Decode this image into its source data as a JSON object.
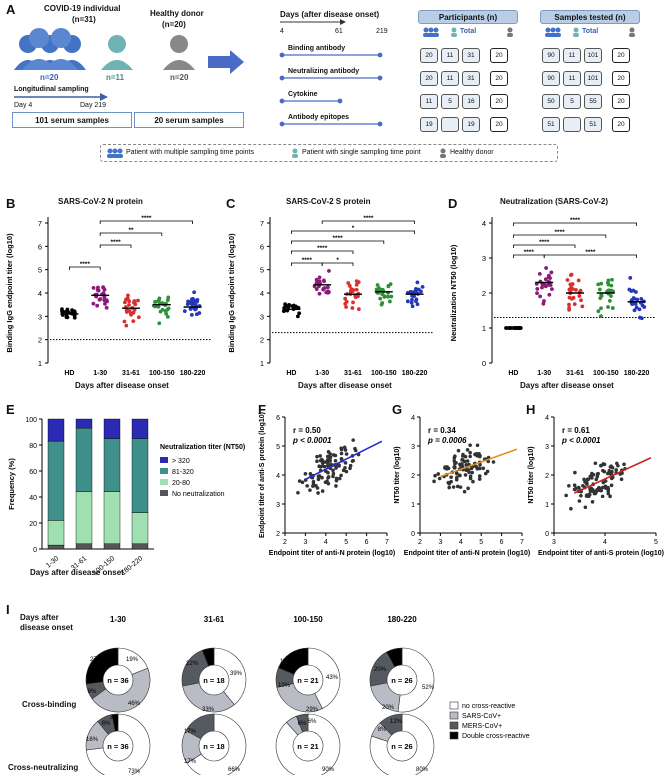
{
  "panelA": {
    "label": "A",
    "covid_title": "COVID-19 individual",
    "covid_n": "(n=31)",
    "healthy_title": "Healthy donor",
    "healthy_n": "(n=20)",
    "n_multi": "n=20",
    "n_single": "n=11",
    "n_hd": "n=20",
    "long_sampling": "Longitudinal sampling",
    "day4": "Day 4",
    "day219": "Day 219",
    "serum_covid": "101 serum samples",
    "serum_hd": "20 serum samples",
    "days_title": "Days (after disease onset)",
    "day_ticks": [
      "4",
      "61",
      "219"
    ],
    "assays": [
      "Binding antibody",
      "Neutralizing antibody",
      "Cytokine",
      "Antibody epitopes"
    ],
    "participants_title": "Participants (n)",
    "samples_title": "Samples tested (n)",
    "total_label": "Total",
    "participants": [
      [
        "20",
        "11",
        "31",
        "20"
      ],
      [
        "20",
        "11",
        "31",
        "20"
      ],
      [
        "11",
        "5",
        "16",
        "20"
      ],
      [
        "19",
        "",
        "19",
        "20"
      ]
    ],
    "samples": [
      [
        "90",
        "11",
        "101",
        "20"
      ],
      [
        "90",
        "11",
        "101",
        "20"
      ],
      [
        "50",
        "5",
        "55",
        "20"
      ],
      [
        "51",
        "",
        "51",
        "20"
      ]
    ],
    "legend": [
      "Patient with multiple sampling time points",
      "Patient with single sampling time point",
      "Healthy donor"
    ]
  },
  "panelB": {
    "label": "B",
    "title": "SARS-CoV-2 N protein",
    "ylabel": "Binding IgG endpoint titer (log10)",
    "xlabel": "Days after disease onset",
    "yticks": [
      "1",
      "2",
      "3",
      "4",
      "5",
      "6",
      "7"
    ],
    "groups": [
      "HD",
      "1-30",
      "31-61",
      "100-150",
      "180-220"
    ],
    "sig": [
      "****",
      "****",
      "**",
      "****",
      "****"
    ]
  },
  "panelC": {
    "label": "C",
    "title": "SARS-CoV-2 S protein",
    "ylabel": "Binding IgG endpoint titer (log10)",
    "xlabel": "Days after disease onset",
    "yticks": [
      "1",
      "2",
      "3",
      "4",
      "5",
      "6",
      "7"
    ],
    "groups": [
      "HD",
      "1-30",
      "31-61",
      "100-150",
      "180-220"
    ],
    "sig": [
      "****",
      "*",
      "****",
      "****",
      "****",
      "*"
    ]
  },
  "panelD": {
    "label": "D",
    "title": "Neutralization (SARS-CoV-2)",
    "ylabel": "Neutralization NT50 (log10)",
    "xlabel": "Days after disease onset",
    "yticks": [
      "0",
      "1",
      "2",
      "3",
      "4"
    ],
    "groups": [
      "HD",
      "1-30",
      "31-61",
      "100-150",
      "180-220"
    ],
    "sig": [
      "****",
      "****",
      "****",
      "****",
      "****"
    ]
  },
  "panelE": {
    "label": "E",
    "ylabel": "Frequency (%)",
    "xlabel": "Days after disease onset",
    "yticks": [
      "0",
      "20",
      "40",
      "60",
      "80",
      "100"
    ],
    "legend_title": "Neutralization titer (NT50)",
    "legend": [
      "> 320",
      "81-320",
      "20-80",
      "No neutralization"
    ]
  },
  "panelF": {
    "label": "F",
    "r": "r = 0.50",
    "p": "p < 0.0001",
    "ylabel": "Endpoint titer of anti-S protein (log10)",
    "xlabel": "Endpoint titer of anti-N protein (log10)",
    "xticks": [
      "2",
      "3",
      "4",
      "5",
      "6",
      "7"
    ],
    "yticks": [
      "2",
      "3",
      "4",
      "5",
      "6"
    ]
  },
  "panelG": {
    "label": "G",
    "r": "r = 0.34",
    "p": "p = 0.0006",
    "ylabel": "NT50 titer (log10)",
    "xlabel": "Endpoint titer of anti-N protein (log10)",
    "xticks": [
      "2",
      "3",
      "4",
      "5",
      "6",
      "7"
    ],
    "yticks": [
      "0",
      "1",
      "2",
      "3",
      "4"
    ]
  },
  "panelH": {
    "label": "H",
    "r": "r = 0.61",
    "p": "p < 0.0001",
    "ylabel": "NT50 titer (log10)",
    "xlabel": "Endpoint titer of anti-S protein (log10)",
    "xticks": [
      "3",
      "4",
      "5"
    ],
    "yticks": [
      "0",
      "1",
      "2",
      "3",
      "4"
    ]
  },
  "panelI": {
    "label": "I",
    "days_label_1": "Days after",
    "days_label_2": "disease onset",
    "columns": [
      "1-30",
      "31-61",
      "100-150",
      "180-220"
    ],
    "rows": [
      "Cross-binding",
      "Cross-neutralizing"
    ],
    "centers": [
      [
        "n = 36",
        "n = 18",
        "n = 21",
        "n = 26"
      ],
      [
        "n = 36",
        "n = 18",
        "n = 21",
        "n = 26"
      ]
    ],
    "labels_binding": [
      [
        "27%",
        "19%",
        "46%",
        "8%"
      ],
      [
        "22%",
        "6%",
        "39%",
        "33%"
      ],
      [
        "19%",
        "10%",
        "43%",
        "29%"
      ],
      [
        "20%",
        "8%",
        "52%",
        "20%"
      ]
    ],
    "labels_neutral": [
      [
        "3%",
        "8%",
        "16%",
        "73%"
      ],
      [
        "17%",
        "17%",
        "66%"
      ],
      [
        "6%",
        "6%",
        "90%"
      ],
      [
        "8%",
        "12%",
        "80%"
      ]
    ],
    "legend": [
      "no cross-reactive",
      "SARS-CoV+",
      "MERS-CoV+",
      "Double cross-reactive"
    ]
  },
  "chart_data": [
    {
      "type": "bar",
      "title": "Neutralization titer distribution",
      "categories": [
        "1-30",
        "31-61",
        "100-150",
        "180-220"
      ],
      "series": [
        {
          "name": "No neutralization",
          "values": [
            3,
            4,
            4,
            4
          ]
        },
        {
          "name": "20-80",
          "values": [
            19,
            40,
            40,
            24
          ]
        },
        {
          "name": "81-320",
          "values": [
            61,
            49,
            41,
            57
          ]
        },
        {
          "name": "> 320",
          "values": [
            17,
            7,
            15,
            15
          ]
        }
      ],
      "xlabel": "Days after disease onset",
      "ylabel": "Frequency (%)",
      "ylim": [
        0,
        100
      ]
    },
    {
      "type": "pie",
      "title": "Cross-binding",
      "categories": [
        "1-30",
        "31-61",
        "100-150",
        "180-220"
      ],
      "series": [
        {
          "name": "no cross-reactive",
          "values": [
            19,
            39,
            43,
            52
          ]
        },
        {
          "name": "SARS-CoV+",
          "values": [
            46,
            33,
            29,
            20
          ]
        },
        {
          "name": "MERS-CoV+",
          "values": [
            8,
            22,
            10,
            20
          ]
        },
        {
          "name": "Double cross-reactive",
          "values": [
            27,
            6,
            19,
            8
          ]
        }
      ]
    },
    {
      "type": "pie",
      "title": "Cross-neutralizing",
      "categories": [
        "1-30",
        "31-61",
        "100-150",
        "180-220"
      ],
      "series": [
        {
          "name": "no cross-reactive",
          "values": [
            73,
            66,
            90,
            80
          ]
        },
        {
          "name": "SARS-CoV+",
          "values": [
            16,
            17,
            6,
            8
          ]
        },
        {
          "name": "MERS-CoV+",
          "values": [
            8,
            17,
            6,
            12
          ]
        },
        {
          "name": "Double cross-reactive",
          "values": [
            3,
            0,
            0,
            0
          ]
        }
      ]
    },
    {
      "type": "scatter",
      "title": "Binding IgG N protein",
      "categories": [
        "HD",
        "1-30",
        "31-61",
        "100-150",
        "180-220"
      ],
      "series": [
        {
          "name": "median",
          "values": [
            3.1,
            3.9,
            3.35,
            3.5,
            3.4
          ]
        }
      ],
      "ylim": [
        1,
        7
      ]
    },
    {
      "type": "scatter",
      "title": "Binding IgG S protein",
      "categories": [
        "HD",
        "1-30",
        "31-61",
        "100-150",
        "180-220"
      ],
      "series": [
        {
          "name": "median",
          "values": [
            3.3,
            4.35,
            3.95,
            4.05,
            3.95
          ]
        }
      ],
      "ylim": [
        1,
        7
      ]
    },
    {
      "type": "scatter",
      "title": "Neutralization NT50",
      "categories": [
        "HD",
        "1-30",
        "31-61",
        "100-150",
        "180-220"
      ],
      "series": [
        {
          "name": "median",
          "values": [
            1.0,
            2.3,
            2.0,
            2.0,
            1.75
          ]
        }
      ],
      "ylim": [
        0,
        4
      ]
    }
  ]
}
